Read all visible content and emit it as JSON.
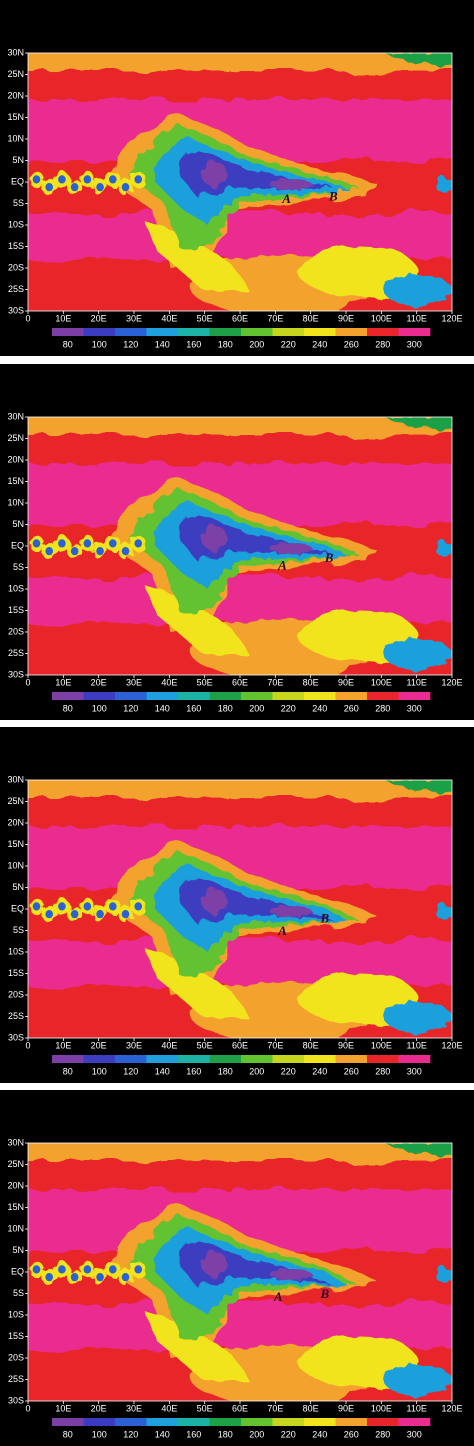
{
  "panels": [
    {
      "y_labels": [
        "30N",
        "25N",
        "20N",
        "15N",
        "10N",
        "5N",
        "EQ",
        "5S",
        "10S",
        "15S",
        "20S",
        "25S",
        "30S"
      ],
      "x_labels": [
        "0",
        "10E",
        "20E",
        "30E",
        "40E",
        "50E",
        "60E",
        "70E",
        "80E",
        "90E",
        "100E",
        "110E",
        "120E"
      ],
      "colorbar": {
        "colors": [
          "#7b3fa6",
          "#3c3cc0",
          "#2a62d6",
          "#1fa0dc",
          "#1cb3a6",
          "#1fa046",
          "#62c230",
          "#c6d61e",
          "#f2e41c",
          "#f4a22e",
          "#e8262a",
          "#ea2b8f"
        ],
        "labels": [
          80,
          100,
          120,
          140,
          160,
          180,
          200,
          220,
          240,
          260,
          280,
          300
        ]
      },
      "annotations": [
        "A",
        "B"
      ]
    },
    {
      "y_labels": [
        "30N",
        "25N",
        "20N",
        "15N",
        "10N",
        "5N",
        "EQ",
        "5S",
        "10S",
        "15S",
        "20S",
        "25S",
        "30S"
      ],
      "x_labels": [
        "0",
        "10E",
        "20E",
        "30E",
        "40E",
        "50E",
        "60E",
        "70E",
        "80E",
        "90E",
        "100E",
        "110E",
        "120E"
      ],
      "colorbar": {
        "colors": [
          "#7b3fa6",
          "#3c3cc0",
          "#2a62d6",
          "#1fa0dc",
          "#1cb3a6",
          "#1fa046",
          "#62c230",
          "#c6d61e",
          "#f2e41c",
          "#f4a22e",
          "#e8262a",
          "#ea2b8f"
        ],
        "labels": [
          80,
          100,
          120,
          140,
          160,
          180,
          200,
          220,
          240,
          260,
          280,
          300
        ]
      },
      "annotations": [
        "A",
        "B"
      ]
    },
    {
      "y_labels": [
        "30N",
        "25N",
        "20N",
        "15N",
        "10N",
        "5N",
        "EQ",
        "5S",
        "10S",
        "15S",
        "20S",
        "25S",
        "30S"
      ],
      "x_labels": [
        "0",
        "10E",
        "20E",
        "30E",
        "40E",
        "50E",
        "60E",
        "70E",
        "80E",
        "90E",
        "100E",
        "110E",
        "120E"
      ],
      "colorbar": {
        "colors": [
          "#7b3fa6",
          "#3c3cc0",
          "#2a62d6",
          "#1fa0dc",
          "#1cb3a6",
          "#1fa046",
          "#62c230",
          "#c6d61e",
          "#f2e41c",
          "#f4a22e",
          "#e8262a",
          "#ea2b8f"
        ],
        "labels": [
          80,
          100,
          120,
          140,
          160,
          180,
          200,
          220,
          240,
          260,
          280,
          300
        ]
      },
      "annotations": [
        "A",
        "B"
      ]
    },
    {
      "y_labels": [
        "30N",
        "25N",
        "20N",
        "15N",
        "10N",
        "5N",
        "EQ",
        "5S",
        "10S",
        "15S",
        "20S",
        "25S",
        "30S"
      ],
      "x_labels": [
        "0",
        "10E",
        "20E",
        "30E",
        "40E",
        "50E",
        "60E",
        "70E",
        "80E",
        "90E",
        "100E",
        "110E",
        "120E"
      ],
      "colorbar": {
        "colors": [
          "#7b3fa6",
          "#3c3cc0",
          "#2a62d6",
          "#1fa0dc",
          "#1cb3a6",
          "#1fa046",
          "#62c230",
          "#c6d61e",
          "#f2e41c",
          "#f4a22e",
          "#e8262a",
          "#ea2b8f"
        ],
        "labels": [
          80,
          100,
          120,
          140,
          160,
          180,
          200,
          220,
          240,
          260,
          280,
          300
        ]
      },
      "annotations": [
        "A",
        "B"
      ]
    }
  ]
}
